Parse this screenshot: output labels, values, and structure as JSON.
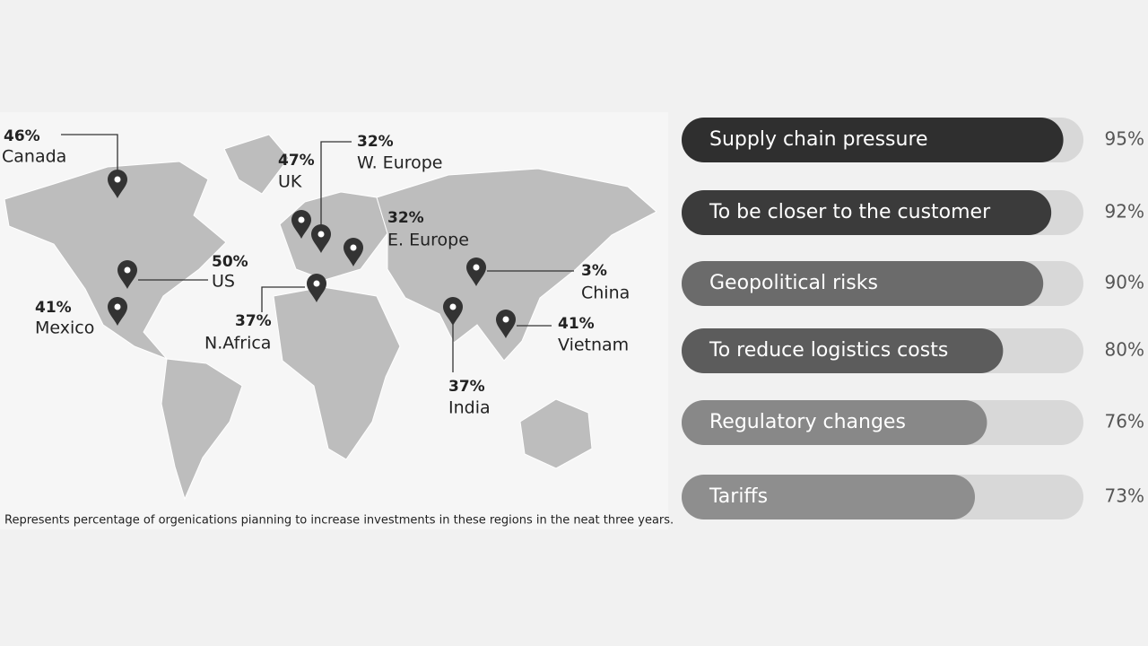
{
  "chart_data": [
    {
      "type": "map",
      "categories": [
        "Canada",
        "UK",
        "W. Europe",
        "E. Europe",
        "US",
        "Mexico",
        "N.Africa",
        "China",
        "India",
        "Vietnam"
      ],
      "values": [
        46,
        47,
        32,
        32,
        50,
        41,
        37,
        3,
        37,
        41
      ],
      "value_labels": [
        "46%",
        "47%",
        "32%",
        "32%",
        "50%",
        "41%",
        "37%",
        "3%",
        "37%",
        "41%"
      ],
      "note": "Represents percentage of orgenications pianning to increase investments in these regions in the neat three years."
    },
    {
      "type": "bar",
      "categories": [
        "Supply chain pressure",
        "To be closer to the customer",
        "Geopolitical risks",
        "To reduce logistics costs",
        "Regulatory changes",
        "Tariffs"
      ],
      "values": [
        95,
        92,
        90,
        80,
        76,
        73
      ],
      "value_labels": [
        "95%",
        "92%",
        "90%",
        "80%",
        "76%",
        "73%"
      ],
      "colors": [
        "#2f2f2f",
        "#3b3b3b",
        "#6b6b6b",
        "#5c5c5c",
        "#888888",
        "#8e8e8e"
      ]
    }
  ]
}
